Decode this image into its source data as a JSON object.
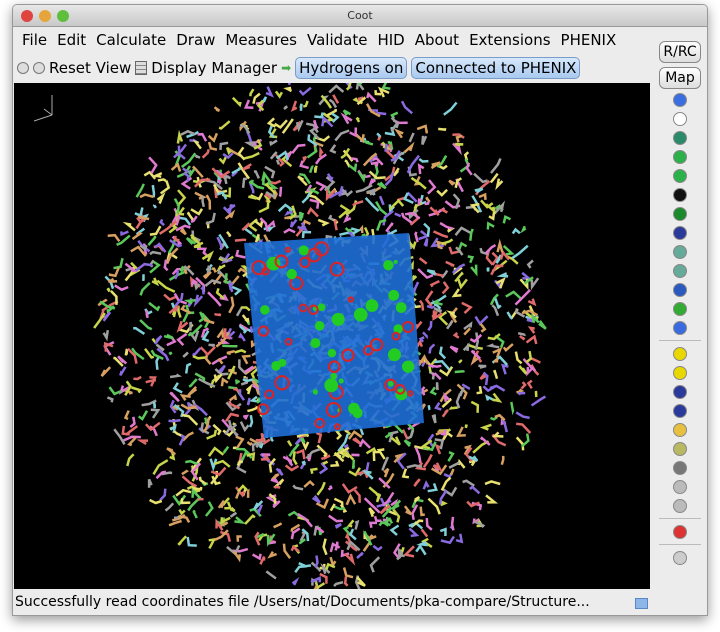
{
  "window": {
    "title": "Coot"
  },
  "menu": [
    "File",
    "Edit",
    "Calculate",
    "Draw",
    "Measures",
    "Validate",
    "HID",
    "About",
    "Extensions",
    "PHENIX"
  ],
  "toolbar": {
    "reset_view": "Reset View",
    "display_manager": "Display Manager",
    "hydrogens": "Hydrogens on",
    "phenix": "Connected to PHENIX"
  },
  "side": {
    "rrc": "R/RC",
    "map": "Map",
    "icons": [
      "rotate-translate-zone-icon",
      "auto-fit-rotamer-icon",
      "rigid-body-fit-icon",
      "real-space-refine-icon",
      "regularize-icon",
      "expand-arrow-icon",
      "rotamer-icon",
      "flip-peptide-icon",
      "side-chain-180-icon",
      "torsion-edit-icon",
      "cis-trans-icon",
      "add-alt-conf-icon",
      "mutate-icon",
      "place-atom-icon",
      "add-water-icon",
      "add-terminal-residue-icon",
      "add-residue-icon",
      "pointer-atom-icon",
      "stamp-icon",
      "delete-icon",
      "undo-icon",
      "redo-icon",
      "display-flag-icon",
      "play-icon"
    ]
  },
  "status": "Successfully read coordinates file /Users/nat/Documents/pka-compare/Structure...",
  "colors": {
    "canvas": "#000000",
    "map": "#1f6fd6",
    "accent": "#a9c9ef"
  }
}
